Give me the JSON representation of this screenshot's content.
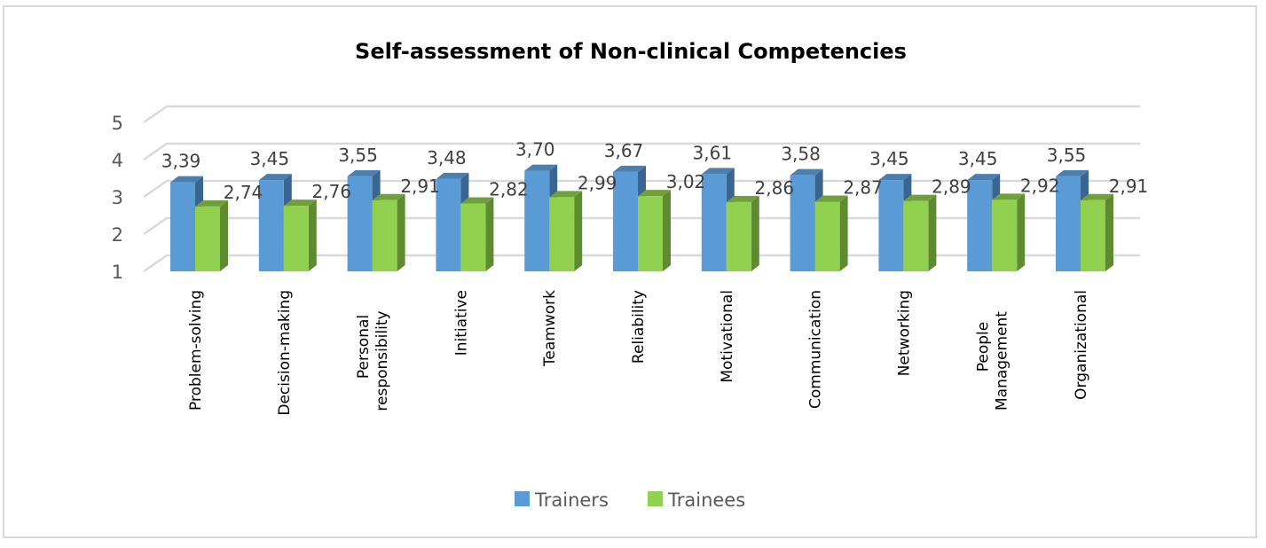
{
  "chart_data": {
    "type": "bar",
    "style": "3d-clustered-column",
    "title": "Self-assessment of Non-clinical Competencies",
    "xlabel": "",
    "ylabel": "",
    "ylim": [
      1,
      5
    ],
    "yticks": [
      "1",
      "2",
      "3",
      "4",
      "5"
    ],
    "grid": true,
    "legend_position": "bottom",
    "categories": [
      [
        "Problem-solving"
      ],
      [
        "Decision-making"
      ],
      [
        "Personal",
        "responsibility"
      ],
      [
        "Initiative"
      ],
      [
        "Teamwork"
      ],
      [
        "Reliability"
      ],
      [
        "Motivational"
      ],
      [
        "Communication"
      ],
      [
        "Networking"
      ],
      [
        "People",
        "Management"
      ],
      [
        "Organizational"
      ]
    ],
    "series": [
      {
        "name": "Trainers",
        "color": "#5b9bd5",
        "side_color": "#3a6590",
        "top_color": "#4a7fb0",
        "values": [
          3.39,
          3.45,
          3.55,
          3.48,
          3.7,
          3.67,
          3.61,
          3.58,
          3.45,
          3.45,
          3.55
        ],
        "labels": [
          "3,39",
          "3,45",
          "3,55",
          "3,48",
          "3,70",
          "3,67",
          "3,61",
          "3,58",
          "3,45",
          "3,45",
          "3,55"
        ]
      },
      {
        "name": "Trainees",
        "color": "#92d050",
        "side_color": "#5e8a30",
        "top_color": "#6fa03c",
        "values": [
          2.74,
          2.76,
          2.91,
          2.82,
          2.99,
          3.02,
          2.86,
          2.87,
          2.89,
          2.92,
          2.91
        ],
        "labels": [
          "2,74",
          "2,76",
          "2,91",
          "2,82",
          "2,99",
          "3,02",
          "2,86",
          "2,87",
          "2,89",
          "2,92",
          "2,91"
        ]
      }
    ]
  }
}
